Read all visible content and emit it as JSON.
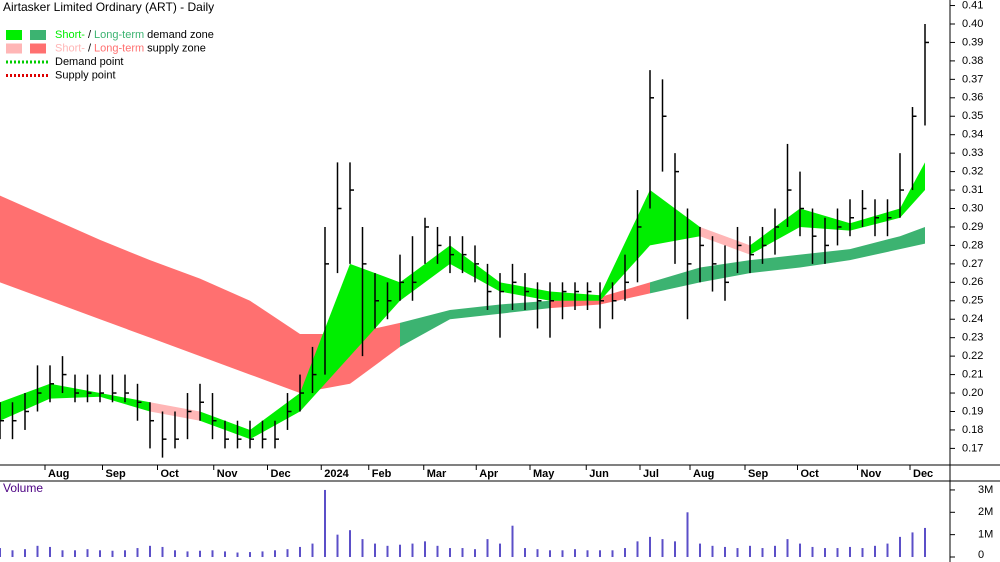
{
  "chart_data": [
    {
      "type": "ohlc",
      "title": "Airtasker Limited Ordinary (ART) - Daily",
      "xlim": [
        0,
        76
      ],
      "ylim": [
        0.161,
        0.413
      ],
      "xticks": [
        {
          "value": 3.6,
          "label": "Aug"
        },
        {
          "value": 8.2,
          "label": "Sep"
        },
        {
          "value": 12.6,
          "label": "Oct"
        },
        {
          "value": 17.1,
          "label": "Nov"
        },
        {
          "value": 21.4,
          "label": "Dec"
        },
        {
          "value": 25.7,
          "label": "2024"
        },
        {
          "value": 29.5,
          "label": "Feb"
        },
        {
          "value": 33.9,
          "label": "Mar"
        },
        {
          "value": 38.1,
          "label": "Apr"
        },
        {
          "value": 42.4,
          "label": "May"
        },
        {
          "value": 46.9,
          "label": "Jun"
        },
        {
          "value": 51.2,
          "label": "Jul"
        },
        {
          "value": 55.2,
          "label": "Aug"
        },
        {
          "value": 59.6,
          "label": "Sep"
        },
        {
          "value": 63.8,
          "label": "Oct"
        },
        {
          "value": 68.6,
          "label": "Nov"
        },
        {
          "value": 72.8,
          "label": "Dec"
        }
      ],
      "yticks": [
        0.17,
        0.18,
        0.19,
        {
          "value": 0.2,
          "label": "0.20"
        },
        0.21,
        0.22,
        0.23,
        0.24,
        0.25,
        0.26,
        0.27,
        0.28,
        0.29,
        {
          "value": 0.3,
          "label": "0.30"
        },
        0.31,
        0.32,
        0.33,
        0.34,
        0.35,
        0.36,
        0.37,
        0.38,
        0.39,
        {
          "value": 0.4,
          "label": "0.40"
        },
        0.41
      ],
      "high": [
        0.195,
        0.195,
        0.2,
        0.215,
        0.215,
        0.22,
        0.21,
        0.21,
        0.21,
        0.21,
        0.21,
        0.205,
        0.195,
        0.19,
        0.19,
        0.2,
        0.205,
        0.2,
        0.185,
        0.185,
        0.185,
        0.185,
        0.185,
        0.2,
        0.21,
        0.225,
        0.29,
        0.325,
        0.325,
        0.29,
        0.265,
        0.26,
        0.275,
        0.285,
        0.295,
        0.29,
        0.285,
        0.285,
        0.28,
        0.27,
        0.265,
        0.27,
        0.265,
        0.26,
        0.26,
        0.26,
        0.26,
        0.26,
        0.26,
        0.26,
        0.275,
        0.31,
        0.375,
        0.37,
        0.33,
        0.3,
        0.29,
        0.285,
        0.28,
        0.29,
        0.285,
        0.29,
        0.3,
        0.335,
        0.32,
        0.3,
        0.295,
        0.3,
        0.305,
        0.31,
        0.305,
        0.305,
        0.33,
        0.355,
        0.4
      ],
      "low": [
        0.175,
        0.175,
        0.18,
        0.19,
        0.195,
        0.2,
        0.195,
        0.195,
        0.195,
        0.195,
        0.195,
        0.185,
        0.17,
        0.165,
        0.17,
        0.175,
        0.185,
        0.175,
        0.17,
        0.17,
        0.17,
        0.17,
        0.17,
        0.18,
        0.19,
        0.2,
        0.21,
        0.265,
        0.27,
        0.22,
        0.235,
        0.24,
        0.25,
        0.25,
        0.27,
        0.27,
        0.265,
        0.265,
        0.26,
        0.245,
        0.23,
        0.245,
        0.245,
        0.235,
        0.23,
        0.24,
        0.245,
        0.245,
        0.235,
        0.24,
        0.25,
        0.26,
        0.3,
        0.32,
        0.27,
        0.24,
        0.26,
        0.255,
        0.25,
        0.265,
        0.265,
        0.27,
        0.275,
        0.29,
        0.285,
        0.27,
        0.27,
        0.28,
        0.285,
        0.29,
        0.285,
        0.285,
        0.295,
        0.31,
        0.345
      ],
      "close": [
        0.185,
        0.185,
        0.19,
        0.2,
        0.205,
        0.21,
        0.2,
        0.2,
        0.2,
        0.2,
        0.2,
        0.195,
        0.185,
        0.175,
        0.175,
        0.19,
        0.195,
        0.185,
        0.175,
        0.175,
        0.175,
        0.175,
        0.175,
        0.19,
        0.2,
        0.21,
        0.27,
        0.3,
        0.31,
        0.27,
        0.25,
        0.25,
        0.26,
        0.26,
        0.29,
        0.28,
        0.275,
        0.275,
        0.27,
        0.255,
        0.255,
        0.26,
        0.255,
        0.25,
        0.25,
        0.255,
        0.255,
        0.255,
        0.25,
        0.25,
        0.26,
        0.29,
        0.36,
        0.35,
        0.32,
        0.27,
        0.28,
        0.27,
        0.26,
        0.28,
        0.275,
        0.28,
        0.29,
        0.31,
        0.3,
        0.285,
        0.28,
        0.29,
        0.295,
        0.3,
        0.295,
        0.295,
        0.31,
        0.35,
        0.39
      ],
      "zones": {
        "x": [
          0,
          4,
          8,
          12,
          16,
          20,
          24,
          28,
          32,
          36,
          40,
          44,
          48,
          52,
          56,
          60,
          64,
          68,
          72,
          74
        ],
        "short_upper": [
          0.195,
          0.205,
          0.2,
          0.195,
          0.19,
          0.18,
          0.2,
          0.27,
          0.26,
          0.28,
          0.26,
          0.255,
          0.253,
          0.31,
          0.29,
          0.28,
          0.3,
          0.292,
          0.3,
          0.325
        ],
        "short_lower": [
          0.185,
          0.197,
          0.198,
          0.19,
          0.185,
          0.175,
          0.19,
          0.22,
          0.25,
          0.27,
          0.255,
          0.25,
          0.25,
          0.28,
          0.285,
          0.275,
          0.29,
          0.288,
          0.295,
          0.31
        ],
        "long_upper": [
          0.307,
          0.295,
          0.283,
          0.272,
          0.262,
          0.25,
          0.232,
          0.232,
          0.238,
          0.245,
          0.248,
          0.25,
          0.252,
          0.26,
          0.268,
          0.272,
          0.275,
          0.278,
          0.285,
          0.29
        ],
        "long_lower": [
          0.26,
          0.25,
          0.24,
          0.23,
          0.22,
          0.21,
          0.2,
          0.205,
          0.225,
          0.24,
          0.243,
          0.246,
          0.248,
          0.254,
          0.26,
          0.265,
          0.268,
          0.272,
          0.278,
          0.281
        ]
      },
      "legend": [
        {
          "parts": [
            "Short-",
            "/",
            "Long-term",
            "demand zone"
          ],
          "swatches": [
            "#00ee00",
            "#3cb371"
          ]
        },
        {
          "parts": [
            "Short-",
            "/",
            "Long-term",
            "supply zone"
          ],
          "swatches": [
            "#ffb6b6",
            "#ff7070"
          ]
        },
        {
          "parts": [
            "Demand point"
          ],
          "swatches": [
            "#00cc00"
          ]
        },
        {
          "parts": [
            "Supply point"
          ],
          "swatches": [
            "#dd0000"
          ]
        }
      ]
    },
    {
      "type": "bar",
      "title": "Volume",
      "color": "#5b4fc8",
      "ylim": [
        0,
        3400000
      ],
      "yticks": [
        0,
        {
          "value": 1000000,
          "label": "1M"
        },
        {
          "value": 2000000,
          "label": "2M"
        },
        {
          "value": 3000000,
          "label": "3M"
        }
      ],
      "values": [
        400000,
        300000,
        350000,
        500000,
        450000,
        300000,
        300000,
        350000,
        300000,
        280000,
        300000,
        400000,
        500000,
        450000,
        300000,
        250000,
        280000,
        300000,
        250000,
        200000,
        220000,
        250000,
        300000,
        350000,
        450000,
        600000,
        3000000,
        1000000,
        1200000,
        800000,
        600000,
        500000,
        550000,
        600000,
        700000,
        500000,
        400000,
        400000,
        350000,
        800000,
        600000,
        1400000,
        400000,
        350000,
        300000,
        300000,
        350000,
        300000,
        300000,
        300000,
        400000,
        700000,
        900000,
        800000,
        700000,
        2000000,
        600000,
        500000,
        450000,
        400000,
        500000,
        400000,
        500000,
        800000,
        600000,
        450000,
        400000,
        400000,
        450000,
        400000,
        500000,
        600000,
        900000,
        1100000,
        1300000
      ]
    }
  ]
}
